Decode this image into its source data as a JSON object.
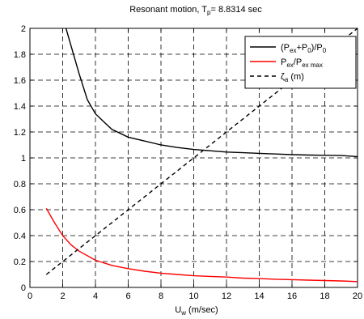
{
  "chart_data": {
    "type": "line",
    "title": {
      "main": "Resonant motion, T",
      "sub": "p",
      "rest": "= 8.8314 sec"
    },
    "xlabel": {
      "main": "U",
      "sub": "w",
      "rest": " (m/sec)"
    },
    "ylabel": "",
    "xlim": [
      0,
      20
    ],
    "ylim": [
      0,
      2
    ],
    "xticks": [
      0,
      2,
      4,
      6,
      8,
      10,
      12,
      14,
      16,
      18,
      20
    ],
    "yticks": [
      0,
      0.2,
      0.4,
      0.6,
      0.8,
      1,
      1.2,
      1.4,
      1.6,
      1.8,
      2
    ],
    "grid": true,
    "legend_position": "top-right",
    "series": [
      {
        "legend": [
          {
            "t": "(P"
          },
          {
            "t": "ex",
            "sub": true
          },
          {
            "t": "+P"
          },
          {
            "t": "0",
            "sub": true
          },
          {
            "t": ")/P"
          },
          {
            "t": "0",
            "sub": true
          }
        ],
        "color": "#000000",
        "dash": "solid",
        "x": [
          2.2,
          2.5,
          3,
          3.5,
          4,
          4.5,
          5,
          6,
          7,
          8,
          9,
          10,
          11,
          12,
          13,
          14,
          15,
          16,
          17,
          18,
          19,
          20
        ],
        "y": [
          2.0,
          1.87,
          1.65,
          1.45,
          1.34,
          1.28,
          1.22,
          1.16,
          1.13,
          1.1,
          1.08,
          1.065,
          1.055,
          1.045,
          1.04,
          1.035,
          1.03,
          1.025,
          1.022,
          1.02,
          1.018,
          1.01
        ]
      },
      {
        "legend": [
          {
            "t": "P"
          },
          {
            "t": "ex",
            "sub": true
          },
          {
            "t": "/P"
          },
          {
            "t": "ex max",
            "sub": true
          }
        ],
        "color": "#ff0000",
        "dash": "solid",
        "x": [
          1,
          1.5,
          2,
          2.5,
          3,
          4,
          5,
          6,
          7,
          8,
          9,
          10,
          11,
          12,
          13,
          14,
          15,
          16,
          17,
          18,
          19,
          20
        ],
        "y": [
          0.61,
          0.5,
          0.4,
          0.33,
          0.28,
          0.21,
          0.17,
          0.145,
          0.125,
          0.11,
          0.1,
          0.09,
          0.085,
          0.08,
          0.072,
          0.068,
          0.063,
          0.06,
          0.056,
          0.053,
          0.05,
          0.045
        ]
      },
      {
        "legend": [
          {
            "t": "ζ"
          },
          {
            "t": "a",
            "sub": true
          },
          {
            "t": " (m)"
          }
        ],
        "color": "#000000",
        "dash": "dashed",
        "x": [
          1,
          20
        ],
        "y": [
          0.1,
          2.0
        ]
      }
    ]
  }
}
